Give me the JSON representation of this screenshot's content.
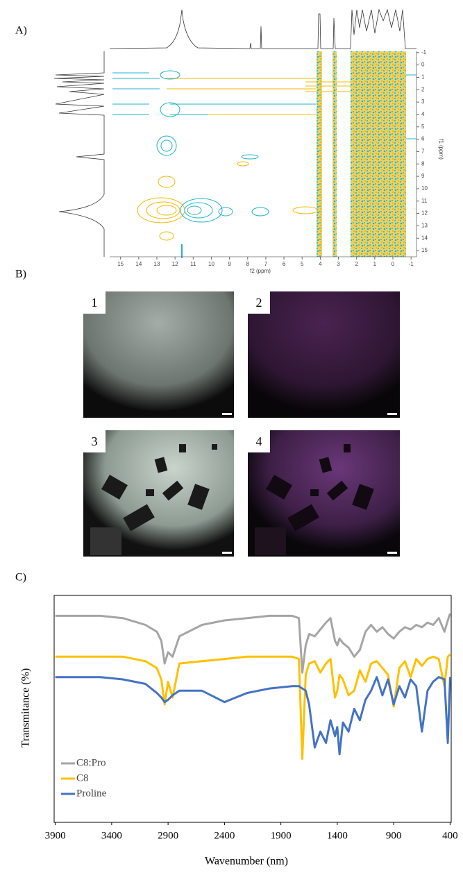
{
  "panel_labels": [
    "A)",
    "B)",
    "C)"
  ],
  "nmr_axes": {
    "xlabel": "f2 (ppm)",
    "ylabel": "f1 (ppm)",
    "xlim": [
      15.6,
      -1.3
    ],
    "xticks": [
      15,
      14,
      13,
      12,
      11,
      10,
      9,
      8,
      7,
      6,
      5,
      4,
      3,
      2,
      1,
      0,
      -1
    ],
    "ylim": [
      -1.1,
      15.5
    ],
    "yticks": [
      -1,
      0,
      1,
      2,
      3,
      4,
      5,
      6,
      7,
      8,
      9,
      10,
      11,
      12,
      13,
      14,
      15
    ]
  },
  "micrographs": {
    "labels": [
      "1",
      "2",
      "3",
      "4"
    ]
  },
  "chart_data": {
    "type": "line",
    "xlabel": "Wavenumber (nm)",
    "ylabel": "Transmitance (%)",
    "xlim": [
      3910,
      390
    ],
    "xticks": [
      3900,
      3400,
      2900,
      2400,
      1900,
      1400,
      900,
      400
    ],
    "ylim": [
      0,
      100
    ],
    "legend": "lower left",
    "x": [
      3900,
      3500,
      3300,
      3100,
      3000,
      2960,
      2930,
      2900,
      2860,
      2800,
      2600,
      2400,
      2200,
      2000,
      1800,
      1740,
      1710,
      1680,
      1650,
      1600,
      1550,
      1500,
      1460,
      1420,
      1400,
      1380,
      1350,
      1300,
      1250,
      1200,
      1150,
      1100,
      1050,
      1000,
      950,
      900,
      850,
      800,
      750,
      700,
      650,
      600,
      550,
      500,
      450,
      420,
      400
    ],
    "series": [
      {
        "name": "C8:Pro",
        "color": "#a5a5a5",
        "values": [
          91,
          91,
          90,
          87,
          84,
          80,
          70,
          75,
          73,
          82,
          87,
          89,
          90,
          91,
          91,
          90,
          66,
          78,
          83,
          82,
          85,
          88,
          90,
          80,
          78,
          81,
          79,
          77,
          73,
          76,
          84,
          87,
          84,
          86,
          83,
          81,
          84,
          86,
          85,
          87,
          86,
          88,
          87,
          90,
          84,
          89,
          92
        ]
      },
      {
        "name": "C8",
        "color": "#ffc000",
        "values": [
          73,
          73,
          73,
          71,
          68,
          63,
          52,
          62,
          55,
          70,
          71,
          72,
          73,
          73,
          73,
          72,
          28,
          65,
          70,
          71,
          66,
          70,
          72,
          55,
          58,
          65,
          63,
          56,
          58,
          67,
          62,
          70,
          71,
          68,
          65,
          51,
          68,
          71,
          64,
          72,
          69,
          72,
          73,
          72,
          60,
          73,
          74
        ]
      },
      {
        "name": "Proline",
        "color": "#4472c4",
        "values": [
          64,
          64,
          63,
          61,
          57,
          55,
          53,
          54,
          56,
          58,
          58,
          53,
          57,
          59,
          60,
          60,
          59,
          58,
          52,
          33,
          40,
          35,
          45,
          38,
          42,
          30,
          44,
          40,
          50,
          45,
          54,
          58,
          64,
          56,
          63,
          52,
          60,
          55,
          63,
          60,
          40,
          58,
          62,
          64,
          63,
          35,
          64
        ]
      }
    ]
  }
}
